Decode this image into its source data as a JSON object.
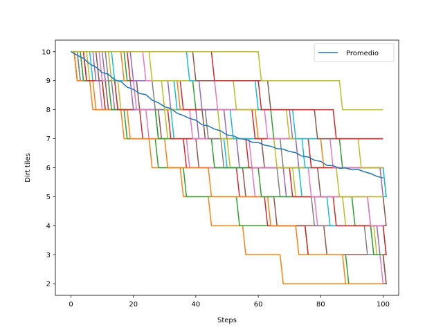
{
  "chart_data": {
    "type": "line",
    "xlabel": "Steps",
    "ylabel": "Dirt tiles",
    "xlim": [
      -5,
      105
    ],
    "ylim": [
      1.6,
      10.4
    ],
    "xticks": [
      0,
      20,
      40,
      60,
      80,
      100
    ],
    "yticks": [
      2,
      3,
      4,
      5,
      6,
      7,
      8,
      9,
      10
    ],
    "grid": false,
    "legend": {
      "placement": "top-right",
      "entries": [
        "Promedio"
      ]
    },
    "palette": [
      "#1f77b4",
      "#ff7f0e",
      "#2ca02c",
      "#d62728",
      "#9467bd",
      "#8c564b",
      "#e377c2",
      "#7f7f7f",
      "#bcbd22",
      "#17becf"
    ],
    "runs_note_colors_cycle": true,
    "runs": [
      {
        "color": "#ff7f0e",
        "drops": [
          1,
          6,
          16,
          25,
          35,
          44,
          55,
          67
        ]
      },
      {
        "color": "#2ca02c",
        "drops": [
          2,
          10,
          17,
          27,
          36,
          53,
          75,
          88
        ]
      },
      {
        "color": "#d62728",
        "drops": [
          1,
          10,
          22,
          36,
          53,
          62,
          75,
          100
        ]
      },
      {
        "color": "#9467bd",
        "drops": [
          10,
          31,
          49,
          53,
          68,
          95,
          98
        ]
      },
      {
        "color": "#8c564b",
        "drops": [
          4,
          11,
          28,
          40,
          55,
          65,
          81,
          100
        ]
      },
      {
        "color": "#e377c2",
        "drops": [
          3,
          9,
          24,
          37,
          58,
          78,
          96,
          99
        ]
      },
      {
        "color": "#7f7f7f",
        "drops": [
          2,
          13,
          27,
          48,
          66,
          77,
          94
        ]
      },
      {
        "color": "#bcbd22",
        "drops": [
          5,
          15,
          30,
          50,
          71,
          87,
          97
        ]
      },
      {
        "color": "#17becf",
        "drops": [
          6,
          14,
          32,
          49,
          73,
          82,
          100
        ]
      },
      {
        "color": "#ff7f0e",
        "drops": [
          1,
          7,
          18,
          30,
          44,
          63,
          72,
          87
        ]
      },
      {
        "color": "#2ca02c",
        "drops": [
          3,
          12,
          27,
          45,
          60,
          90,
          96
        ]
      },
      {
        "color": "#d62728",
        "drops": [
          4,
          14,
          31,
          56,
          70,
          84,
          100
        ]
      },
      {
        "color": "#9467bd",
        "drops": [
          7,
          19,
          40,
          72,
          99
        ]
      },
      {
        "color": "#8c564b",
        "drops": [
          8,
          21,
          42,
          61,
          79,
          100
        ]
      },
      {
        "color": "#e377c2",
        "drops": [
          9,
          20,
          38,
          57,
          76,
          95
        ]
      },
      {
        "color": "#7f7f7f",
        "drops": [
          11,
          26,
          43,
          67,
          100
        ]
      },
      {
        "color": "#bcbd22",
        "drops": [
          12,
          29,
          47,
          65,
          85
        ]
      },
      {
        "color": "#17becf",
        "drops": [
          13,
          33,
          51,
          74,
          100
        ]
      },
      {
        "color": "#ff7f0e",
        "drops": [
          16,
          34,
          59,
          80
        ]
      },
      {
        "color": "#2ca02c",
        "drops": [
          17,
          39,
          64,
          86
        ]
      },
      {
        "color": "#d62728",
        "drops": [
          18,
          35,
          58,
          76
        ]
      },
      {
        "color": "#9467bd",
        "drops": [
          19,
          41,
          70
        ]
      },
      {
        "color": "#e377c2",
        "drops": [
          23,
          46,
          62,
          83
        ]
      },
      {
        "color": "#bcbd22",
        "drops": [
          25,
          52,
          69,
          92
        ]
      },
      {
        "color": "#17becf",
        "drops": [
          37,
          59,
          71
        ]
      },
      {
        "color": "#8c564b",
        "drops": [
          39,
          63,
          78
        ]
      },
      {
        "color": "#d62728",
        "drops": [
          45,
          60,
          84
        ]
      },
      {
        "color": "#bcbd22",
        "drops": [
          60,
          86
        ]
      }
    ],
    "series": [
      {
        "name": "Promedio",
        "color": "#1f77b4",
        "x": [
          0,
          2,
          4,
          6,
          8,
          10,
          12,
          14,
          16,
          18,
          20,
          22,
          24,
          26,
          28,
          30,
          32,
          34,
          36,
          38,
          40,
          42,
          44,
          46,
          48,
          50,
          52,
          54,
          56,
          58,
          60,
          62,
          64,
          66,
          68,
          70,
          72,
          74,
          76,
          78,
          80,
          82,
          84,
          86,
          88,
          90,
          92,
          94,
          96,
          98,
          100
        ],
        "y": [
          10.0,
          9.9,
          9.75,
          9.6,
          9.45,
          9.3,
          9.2,
          9.05,
          8.95,
          8.8,
          8.68,
          8.58,
          8.5,
          8.35,
          8.22,
          8.12,
          8.02,
          7.9,
          7.78,
          7.72,
          7.62,
          7.5,
          7.42,
          7.35,
          7.25,
          7.15,
          7.08,
          7.02,
          6.96,
          6.9,
          6.85,
          6.8,
          6.72,
          6.68,
          6.62,
          6.58,
          6.5,
          6.42,
          6.35,
          6.28,
          6.2,
          6.1,
          6.05,
          6.0,
          5.97,
          5.95,
          5.92,
          5.88,
          5.78,
          5.72,
          5.65
        ]
      }
    ]
  }
}
